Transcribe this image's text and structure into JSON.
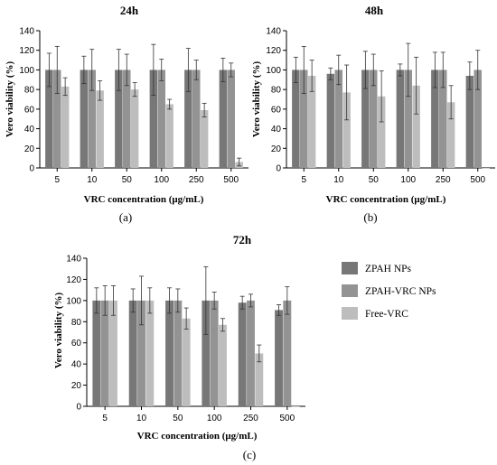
{
  "legend": [
    {
      "name": "ZPAH NPs",
      "color": "#777777"
    },
    {
      "name": "ZPAH-VRC NPs",
      "color": "#939393"
    },
    {
      "name": "Free-VRC",
      "color": "#bdbdbd"
    }
  ],
  "chart_data": [
    {
      "type": "bar",
      "panel_label": "(a)",
      "title": "24h",
      "xlabel": "VRC concentration (μg/mL)",
      "ylabel": "Vero viability (%)",
      "ylim": [
        0,
        140
      ],
      "yticks": [
        "0",
        "20",
        "40",
        "60",
        "80",
        "100",
        "120",
        "140"
      ],
      "categories": [
        "5",
        "10",
        "50",
        "100",
        "250",
        "500"
      ],
      "series": [
        {
          "name": "ZPAH NPs",
          "values": [
            100,
            100,
            100,
            100,
            100,
            100
          ],
          "errors": [
            17,
            14,
            21,
            26,
            22,
            12
          ]
        },
        {
          "name": "ZPAH-VRC NPs",
          "values": [
            100,
            100,
            100,
            100,
            100,
            100
          ],
          "errors": [
            24,
            21,
            16,
            11,
            10,
            7
          ]
        },
        {
          "name": "Free-VRC",
          "values": [
            83,
            79,
            80,
            65,
            59,
            6
          ],
          "errors": [
            9,
            10,
            7,
            5,
            7,
            4
          ]
        }
      ]
    },
    {
      "type": "bar",
      "panel_label": "(b)",
      "title": "48h",
      "xlabel": "VRC concentration (μg/mL)",
      "ylabel": "Vero viability (%)",
      "ylim": [
        0,
        140
      ],
      "yticks": [
        "0",
        "20",
        "40",
        "60",
        "80",
        "100",
        "120",
        "140"
      ],
      "categories": [
        "5",
        "10",
        "50",
        "100",
        "250",
        "500"
      ],
      "series": [
        {
          "name": "ZPAH NPs",
          "values": [
            100,
            96,
            100,
            100,
            100,
            94
          ],
          "errors": [
            13,
            6,
            19,
            6,
            18,
            14
          ]
        },
        {
          "name": "ZPAH-VRC NPs",
          "values": [
            100,
            100,
            100,
            100,
            100,
            100
          ],
          "errors": [
            24,
            15,
            16,
            27,
            18,
            20
          ]
        },
        {
          "name": "Free-VRC",
          "values": [
            94,
            77,
            73,
            84,
            67,
            0
          ],
          "errors": [
            16,
            28,
            26,
            29,
            17,
            0
          ]
        }
      ]
    },
    {
      "type": "bar",
      "panel_label": "(c)",
      "title": "72h",
      "xlabel": "VRC concentration (μg/mL)",
      "ylabel": "Vero viability (%)",
      "ylim": [
        0,
        140
      ],
      "yticks": [
        "0",
        "20",
        "40",
        "60",
        "80",
        "100",
        "120",
        "140"
      ],
      "categories": [
        "5",
        "10",
        "50",
        "100",
        "250",
        "500"
      ],
      "series": [
        {
          "name": "ZPAH NPs",
          "values": [
            100,
            100,
            100,
            100,
            98,
            91
          ],
          "errors": [
            12,
            11,
            12,
            32,
            6,
            5
          ]
        },
        {
          "name": "ZPAH-VRC NPs",
          "values": [
            100,
            100,
            100,
            100,
            100,
            100
          ],
          "errors": [
            14,
            23,
            11,
            8,
            6,
            13
          ]
        },
        {
          "name": "Free-VRC",
          "values": [
            100,
            100,
            83,
            77,
            50,
            0
          ],
          "errors": [
            14,
            12,
            10,
            6,
            8,
            0
          ]
        }
      ]
    }
  ]
}
